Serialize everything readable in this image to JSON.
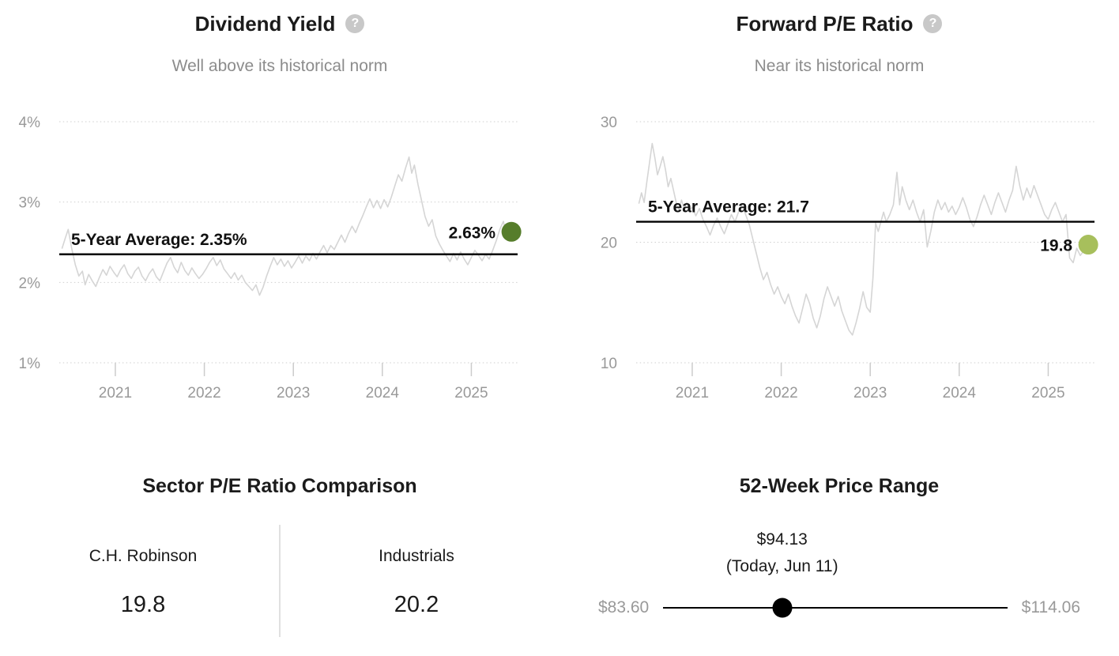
{
  "icons": {
    "help": "?"
  },
  "chart_data": [
    {
      "type": "line",
      "title": "Dividend Yield",
      "subtitle": "Well above its historical norm",
      "ylabel": "Dividend Yield (%)",
      "grid": "dotted-horizontal",
      "ylim": [
        1,
        4
      ],
      "xlim": [
        2020.37,
        2025.52
      ],
      "y_ticks": [
        {
          "value": 4,
          "label": "4%"
        },
        {
          "value": 3,
          "label": "3%"
        },
        {
          "value": 2,
          "label": "2%"
        },
        {
          "value": 1,
          "label": "1%"
        }
      ],
      "x_ticks": [
        {
          "value": 2021,
          "label": "2021"
        },
        {
          "value": 2022,
          "label": "2022"
        },
        {
          "value": 2023,
          "label": "2023"
        },
        {
          "value": 2024,
          "label": "2024"
        },
        {
          "value": 2025,
          "label": "2025"
        }
      ],
      "average": {
        "value": 2.35,
        "label": "5-Year Average: 2.35%"
      },
      "current": {
        "value": 2.63,
        "label": "2.63%",
        "color": "#567d2b"
      },
      "points": [
        [
          2020.4,
          2.42
        ],
        [
          2020.44,
          2.56
        ],
        [
          2020.47,
          2.66
        ],
        [
          2020.51,
          2.42
        ],
        [
          2020.55,
          2.22
        ],
        [
          2020.59,
          2.08
        ],
        [
          2020.63,
          2.14
        ],
        [
          2020.66,
          1.97
        ],
        [
          2020.7,
          2.1
        ],
        [
          2020.74,
          2.02
        ],
        [
          2020.78,
          1.95
        ],
        [
          2020.82,
          2.06
        ],
        [
          2020.86,
          2.16
        ],
        [
          2020.9,
          2.09
        ],
        [
          2020.94,
          2.2
        ],
        [
          2020.98,
          2.13
        ],
        [
          2021.02,
          2.07
        ],
        [
          2021.06,
          2.16
        ],
        [
          2021.1,
          2.22
        ],
        [
          2021.14,
          2.11
        ],
        [
          2021.18,
          2.05
        ],
        [
          2021.22,
          2.14
        ],
        [
          2021.26,
          2.19
        ],
        [
          2021.3,
          2.08
        ],
        [
          2021.34,
          2.02
        ],
        [
          2021.38,
          2.11
        ],
        [
          2021.42,
          2.17
        ],
        [
          2021.46,
          2.07
        ],
        [
          2021.5,
          2.02
        ],
        [
          2021.54,
          2.13
        ],
        [
          2021.58,
          2.24
        ],
        [
          2021.62,
          2.31
        ],
        [
          2021.66,
          2.19
        ],
        [
          2021.7,
          2.12
        ],
        [
          2021.74,
          2.25
        ],
        [
          2021.78,
          2.15
        ],
        [
          2021.82,
          2.09
        ],
        [
          2021.86,
          2.18
        ],
        [
          2021.9,
          2.11
        ],
        [
          2021.94,
          2.05
        ],
        [
          2021.98,
          2.1
        ],
        [
          2022.02,
          2.17
        ],
        [
          2022.06,
          2.25
        ],
        [
          2022.1,
          2.31
        ],
        [
          2022.14,
          2.21
        ],
        [
          2022.18,
          2.28
        ],
        [
          2022.22,
          2.17
        ],
        [
          2022.26,
          2.11
        ],
        [
          2022.3,
          2.05
        ],
        [
          2022.34,
          2.12
        ],
        [
          2022.38,
          2.03
        ],
        [
          2022.42,
          2.09
        ],
        [
          2022.46,
          2.0
        ],
        [
          2022.5,
          1.95
        ],
        [
          2022.54,
          1.9
        ],
        [
          2022.58,
          1.97
        ],
        [
          2022.62,
          1.84
        ],
        [
          2022.66,
          1.94
        ],
        [
          2022.7,
          2.08
        ],
        [
          2022.74,
          2.2
        ],
        [
          2022.78,
          2.31
        ],
        [
          2022.82,
          2.22
        ],
        [
          2022.86,
          2.29
        ],
        [
          2022.9,
          2.2
        ],
        [
          2022.94,
          2.27
        ],
        [
          2022.98,
          2.18
        ],
        [
          2023.02,
          2.25
        ],
        [
          2023.06,
          2.33
        ],
        [
          2023.1,
          2.24
        ],
        [
          2023.14,
          2.33
        ],
        [
          2023.18,
          2.27
        ],
        [
          2023.22,
          2.36
        ],
        [
          2023.26,
          2.29
        ],
        [
          2023.3,
          2.38
        ],
        [
          2023.34,
          2.46
        ],
        [
          2023.38,
          2.37
        ],
        [
          2023.42,
          2.46
        ],
        [
          2023.46,
          2.41
        ],
        [
          2023.5,
          2.5
        ],
        [
          2023.54,
          2.59
        ],
        [
          2023.58,
          2.5
        ],
        [
          2023.62,
          2.61
        ],
        [
          2023.66,
          2.7
        ],
        [
          2023.7,
          2.62
        ],
        [
          2023.74,
          2.73
        ],
        [
          2023.78,
          2.83
        ],
        [
          2023.82,
          2.94
        ],
        [
          2023.86,
          3.04
        ],
        [
          2023.9,
          2.93
        ],
        [
          2023.94,
          3.02
        ],
        [
          2023.98,
          2.92
        ],
        [
          2024.02,
          3.03
        ],
        [
          2024.06,
          2.94
        ],
        [
          2024.1,
          3.06
        ],
        [
          2024.14,
          3.2
        ],
        [
          2024.18,
          3.34
        ],
        [
          2024.22,
          3.26
        ],
        [
          2024.26,
          3.42
        ],
        [
          2024.3,
          3.56
        ],
        [
          2024.33,
          3.36
        ],
        [
          2024.36,
          3.46
        ],
        [
          2024.4,
          3.22
        ],
        [
          2024.44,
          3.02
        ],
        [
          2024.48,
          2.82
        ],
        [
          2024.52,
          2.7
        ],
        [
          2024.56,
          2.78
        ],
        [
          2024.6,
          2.58
        ],
        [
          2024.64,
          2.48
        ],
        [
          2024.68,
          2.4
        ],
        [
          2024.72,
          2.33
        ],
        [
          2024.76,
          2.26
        ],
        [
          2024.8,
          2.36
        ],
        [
          2024.84,
          2.28
        ],
        [
          2024.88,
          2.38
        ],
        [
          2024.92,
          2.29
        ],
        [
          2024.96,
          2.22
        ],
        [
          2025.0,
          2.31
        ],
        [
          2025.04,
          2.4
        ],
        [
          2025.08,
          2.34
        ],
        [
          2025.12,
          2.27
        ],
        [
          2025.16,
          2.35
        ],
        [
          2025.2,
          2.29
        ],
        [
          2025.24,
          2.4
        ],
        [
          2025.28,
          2.52
        ],
        [
          2025.32,
          2.66
        ],
        [
          2025.36,
          2.76
        ],
        [
          2025.4,
          2.56
        ],
        [
          2025.45,
          2.63
        ]
      ]
    },
    {
      "type": "line",
      "title": "Forward P/E Ratio",
      "subtitle": "Near its historical norm",
      "ylabel": "Forward P/E Ratio",
      "grid": "dotted-horizontal",
      "ylim": [
        10,
        30
      ],
      "xlim": [
        2020.37,
        2025.52
      ],
      "y_ticks": [
        {
          "value": 30,
          "label": "30"
        },
        {
          "value": 20,
          "label": "20"
        },
        {
          "value": 10,
          "label": "10"
        }
      ],
      "x_ticks": [
        {
          "value": 2021,
          "label": "2021"
        },
        {
          "value": 2022,
          "label": "2022"
        },
        {
          "value": 2023,
          "label": "2023"
        },
        {
          "value": 2024,
          "label": "2024"
        },
        {
          "value": 2025,
          "label": "2025"
        }
      ],
      "average": {
        "value": 21.7,
        "label": "5-Year Average: 21.7"
      },
      "current": {
        "value": 19.8,
        "label": "19.8",
        "color": "#a7bf5c"
      },
      "points": [
        [
          2020.4,
          23.2
        ],
        [
          2020.43,
          24.1
        ],
        [
          2020.46,
          23.3
        ],
        [
          2020.49,
          25.0
        ],
        [
          2020.52,
          26.6
        ],
        [
          2020.55,
          28.2
        ],
        [
          2020.58,
          27.0
        ],
        [
          2020.61,
          25.6
        ],
        [
          2020.64,
          26.3
        ],
        [
          2020.67,
          27.1
        ],
        [
          2020.7,
          26.0
        ],
        [
          2020.73,
          24.6
        ],
        [
          2020.76,
          25.3
        ],
        [
          2020.79,
          24.3
        ],
        [
          2020.82,
          23.3
        ],
        [
          2020.85,
          22.7
        ],
        [
          2020.88,
          23.5
        ],
        [
          2020.91,
          22.8
        ],
        [
          2020.94,
          23.3
        ],
        [
          2020.97,
          22.7
        ],
        [
          2021.0,
          22.9
        ],
        [
          2021.04,
          22.2
        ],
        [
          2021.08,
          22.8
        ],
        [
          2021.12,
          21.9
        ],
        [
          2021.16,
          21.3
        ],
        [
          2021.2,
          20.6
        ],
        [
          2021.24,
          21.4
        ],
        [
          2021.28,
          22.0
        ],
        [
          2021.32,
          21.3
        ],
        [
          2021.36,
          20.7
        ],
        [
          2021.4,
          21.5
        ],
        [
          2021.44,
          22.3
        ],
        [
          2021.48,
          21.7
        ],
        [
          2021.52,
          22.5
        ],
        [
          2021.56,
          23.1
        ],
        [
          2021.6,
          22.3
        ],
        [
          2021.64,
          21.5
        ],
        [
          2021.68,
          20.3
        ],
        [
          2021.72,
          19.1
        ],
        [
          2021.76,
          17.9
        ],
        [
          2021.8,
          16.9
        ],
        [
          2021.84,
          17.5
        ],
        [
          2021.88,
          16.5
        ],
        [
          2021.92,
          15.7
        ],
        [
          2021.96,
          16.3
        ],
        [
          2022.0,
          15.5
        ],
        [
          2022.04,
          14.9
        ],
        [
          2022.08,
          15.7
        ],
        [
          2022.12,
          14.7
        ],
        [
          2022.16,
          13.9
        ],
        [
          2022.2,
          13.3
        ],
        [
          2022.24,
          14.5
        ],
        [
          2022.28,
          15.7
        ],
        [
          2022.32,
          14.9
        ],
        [
          2022.36,
          13.7
        ],
        [
          2022.4,
          12.9
        ],
        [
          2022.44,
          13.9
        ],
        [
          2022.48,
          15.3
        ],
        [
          2022.52,
          16.3
        ],
        [
          2022.56,
          15.5
        ],
        [
          2022.6,
          14.7
        ],
        [
          2022.64,
          15.5
        ],
        [
          2022.68,
          14.3
        ],
        [
          2022.72,
          13.5
        ],
        [
          2022.76,
          12.7
        ],
        [
          2022.8,
          12.3
        ],
        [
          2022.84,
          13.3
        ],
        [
          2022.88,
          14.5
        ],
        [
          2022.92,
          15.9
        ],
        [
          2022.96,
          14.6
        ],
        [
          2023.0,
          14.2
        ],
        [
          2023.03,
          17.0
        ],
        [
          2023.06,
          21.6
        ],
        [
          2023.09,
          20.9
        ],
        [
          2023.12,
          21.7
        ],
        [
          2023.15,
          22.5
        ],
        [
          2023.18,
          21.7
        ],
        [
          2023.22,
          22.3
        ],
        [
          2023.26,
          23.1
        ],
        [
          2023.3,
          25.8
        ],
        [
          2023.33,
          23.1
        ],
        [
          2023.36,
          24.6
        ],
        [
          2023.4,
          23.5
        ],
        [
          2023.44,
          22.7
        ],
        [
          2023.48,
          23.5
        ],
        [
          2023.52,
          22.5
        ],
        [
          2023.56,
          21.7
        ],
        [
          2023.6,
          22.7
        ],
        [
          2023.64,
          19.6
        ],
        [
          2023.68,
          20.9
        ],
        [
          2023.72,
          22.5
        ],
        [
          2023.76,
          23.5
        ],
        [
          2023.8,
          22.7
        ],
        [
          2023.84,
          23.3
        ],
        [
          2023.88,
          22.5
        ],
        [
          2023.92,
          23.0
        ],
        [
          2023.96,
          22.3
        ],
        [
          2024.0,
          22.9
        ],
        [
          2024.04,
          23.7
        ],
        [
          2024.08,
          22.9
        ],
        [
          2024.12,
          21.9
        ],
        [
          2024.16,
          21.3
        ],
        [
          2024.2,
          22.1
        ],
        [
          2024.24,
          23.1
        ],
        [
          2024.28,
          23.9
        ],
        [
          2024.32,
          23.1
        ],
        [
          2024.36,
          22.3
        ],
        [
          2024.4,
          23.3
        ],
        [
          2024.44,
          24.1
        ],
        [
          2024.48,
          23.3
        ],
        [
          2024.52,
          22.5
        ],
        [
          2024.56,
          23.5
        ],
        [
          2024.6,
          24.3
        ],
        [
          2024.64,
          26.3
        ],
        [
          2024.68,
          24.7
        ],
        [
          2024.72,
          23.5
        ],
        [
          2024.76,
          24.5
        ],
        [
          2024.8,
          23.7
        ],
        [
          2024.84,
          24.7
        ],
        [
          2024.88,
          23.9
        ],
        [
          2024.92,
          23.1
        ],
        [
          2024.96,
          22.3
        ],
        [
          2025.0,
          21.9
        ],
        [
          2025.04,
          22.7
        ],
        [
          2025.08,
          23.3
        ],
        [
          2025.12,
          22.5
        ],
        [
          2025.16,
          21.7
        ],
        [
          2025.2,
          22.3
        ],
        [
          2025.24,
          18.7
        ],
        [
          2025.28,
          18.3
        ],
        [
          2025.32,
          19.5
        ],
        [
          2025.36,
          18.9
        ],
        [
          2025.4,
          19.3
        ],
        [
          2025.45,
          19.8
        ]
      ]
    },
    {
      "type": "table",
      "title": "Sector P/E Ratio Comparison",
      "items": [
        {
          "label": "C.H. Robinson",
          "value": "19.8"
        },
        {
          "label": "Industrials",
          "value": "20.2"
        }
      ]
    },
    {
      "type": "range",
      "title": "52-Week Price Range",
      "min": 83.6,
      "max": 114.06,
      "current": 94.13,
      "min_label": "$83.60",
      "max_label": "$114.06",
      "current_label": "$94.13",
      "current_sublabel": "(Today, Jun 11)"
    }
  ]
}
